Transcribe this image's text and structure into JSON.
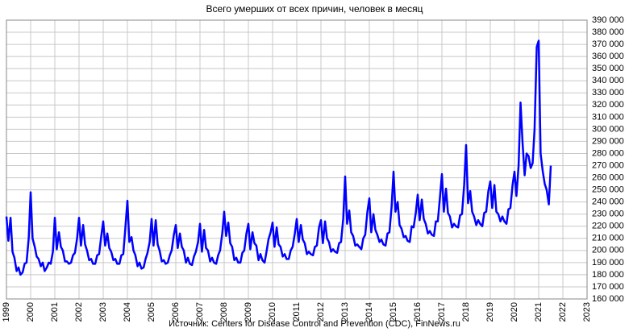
{
  "chart_data": {
    "type": "line",
    "title": "Всего умерших от всех причин, человек в месяц",
    "source": "Источник: Centers for Disease Control and Prevention (CDC), FinNews.ru",
    "color": "#0000ff",
    "grid": true,
    "xlim": [
      1999,
      2023
    ],
    "xticks": [
      1999,
      2000,
      2001,
      2002,
      2003,
      2004,
      2005,
      2006,
      2007,
      2008,
      2009,
      2010,
      2011,
      2012,
      2013,
      2014,
      2015,
      2016,
      2017,
      2018,
      2019,
      2020,
      2021,
      2022,
      2023
    ],
    "ylim": [
      160000,
      390000
    ],
    "yticks": [
      {
        "value": 160000,
        "label": "160 000"
      },
      {
        "value": 170000,
        "label": "170 000"
      },
      {
        "value": 180000,
        "label": "180 000"
      },
      {
        "value": 190000,
        "label": "190 000"
      },
      {
        "value": 200000,
        "label": "200 000"
      },
      {
        "value": 210000,
        "label": "210 000"
      },
      {
        "value": 220000,
        "label": "220 000"
      },
      {
        "value": 230000,
        "label": "230 000"
      },
      {
        "value": 240000,
        "label": "240 000"
      },
      {
        "value": 250000,
        "label": "250 000"
      },
      {
        "value": 260000,
        "label": "260 000"
      },
      {
        "value": 270000,
        "label": "270 000"
      },
      {
        "value": 280000,
        "label": "280 000"
      },
      {
        "value": 290000,
        "label": "290 000"
      },
      {
        "value": 300000,
        "label": "300 000"
      },
      {
        "value": 310000,
        "label": "310 000"
      },
      {
        "value": 320000,
        "label": "320 000"
      },
      {
        "value": 330000,
        "label": "330 000"
      },
      {
        "value": 340000,
        "label": "340 000"
      },
      {
        "value": 350000,
        "label": "350 000"
      },
      {
        "value": 360000,
        "label": "360 000"
      },
      {
        "value": 370000,
        "label": "370 000"
      },
      {
        "value": 380000,
        "label": "380 000"
      },
      {
        "value": 390000,
        "label": "390 000"
      }
    ],
    "x": [
      1999.0,
      1999.08,
      1999.17,
      1999.25,
      1999.33,
      1999.42,
      1999.5,
      1999.58,
      1999.67,
      1999.75,
      1999.83,
      1999.92,
      2000.0,
      2000.08,
      2000.17,
      2000.25,
      2000.33,
      2000.42,
      2000.5,
      2000.58,
      2000.67,
      2000.75,
      2000.83,
      2000.92,
      2001.0,
      2001.08,
      2001.17,
      2001.25,
      2001.33,
      2001.42,
      2001.5,
      2001.58,
      2001.67,
      2001.75,
      2001.83,
      2001.92,
      2002.0,
      2002.08,
      2002.17,
      2002.25,
      2002.33,
      2002.42,
      2002.5,
      2002.58,
      2002.67,
      2002.75,
      2002.83,
      2002.92,
      2003.0,
      2003.08,
      2003.17,
      2003.25,
      2003.33,
      2003.42,
      2003.5,
      2003.58,
      2003.67,
      2003.75,
      2003.83,
      2003.92,
      2004.0,
      2004.08,
      2004.17,
      2004.25,
      2004.33,
      2004.42,
      2004.5,
      2004.58,
      2004.67,
      2004.75,
      2004.83,
      2004.92,
      2005.0,
      2005.08,
      2005.17,
      2005.25,
      2005.33,
      2005.42,
      2005.5,
      2005.58,
      2005.67,
      2005.75,
      2005.83,
      2005.92,
      2006.0,
      2006.08,
      2006.17,
      2006.25,
      2006.33,
      2006.42,
      2006.5,
      2006.58,
      2006.67,
      2006.75,
      2006.83,
      2006.92,
      2007.0,
      2007.08,
      2007.17,
      2007.25,
      2007.33,
      2007.42,
      2007.5,
      2007.58,
      2007.67,
      2007.75,
      2007.83,
      2007.92,
      2008.0,
      2008.08,
      2008.17,
      2008.25,
      2008.33,
      2008.42,
      2008.5,
      2008.58,
      2008.67,
      2008.75,
      2008.83,
      2008.92,
      2009.0,
      2009.08,
      2009.17,
      2009.25,
      2009.33,
      2009.42,
      2009.5,
      2009.58,
      2009.67,
      2009.75,
      2009.83,
      2009.92,
      2010.0,
      2010.08,
      2010.17,
      2010.25,
      2010.33,
      2010.42,
      2010.5,
      2010.58,
      2010.67,
      2010.75,
      2010.83,
      2010.92,
      2011.0,
      2011.08,
      2011.17,
      2011.25,
      2011.33,
      2011.42,
      2011.5,
      2011.58,
      2011.67,
      2011.75,
      2011.83,
      2011.92,
      2012.0,
      2012.08,
      2012.17,
      2012.25,
      2012.33,
      2012.42,
      2012.5,
      2012.58,
      2012.67,
      2012.75,
      2012.83,
      2012.92,
      2013.0,
      2013.08,
      2013.17,
      2013.25,
      2013.33,
      2013.42,
      2013.5,
      2013.58,
      2013.67,
      2013.75,
      2013.83,
      2013.92,
      2014.0,
      2014.08,
      2014.17,
      2014.25,
      2014.33,
      2014.42,
      2014.5,
      2014.58,
      2014.67,
      2014.75,
      2014.83,
      2014.92,
      2015.0,
      2015.08,
      2015.17,
      2015.25,
      2015.33,
      2015.42,
      2015.5,
      2015.58,
      2015.67,
      2015.75,
      2015.83,
      2015.92,
      2016.0,
      2016.08,
      2016.17,
      2016.25,
      2016.33,
      2016.42,
      2016.5,
      2016.58,
      2016.67,
      2016.75,
      2016.83,
      2016.92,
      2017.0,
      2017.08,
      2017.17,
      2017.25,
      2017.33,
      2017.42,
      2017.5,
      2017.58,
      2017.67,
      2017.75,
      2017.83,
      2017.92,
      2018.0,
      2018.08,
      2018.17,
      2018.25,
      2018.33,
      2018.42,
      2018.5,
      2018.58,
      2018.67,
      2018.75,
      2018.83,
      2018.92,
      2019.0,
      2019.08,
      2019.17,
      2019.25,
      2019.33,
      2019.42,
      2019.5,
      2019.58,
      2019.67,
      2019.75,
      2019.83,
      2019.92,
      2020.0,
      2020.08,
      2020.17,
      2020.25,
      2020.33,
      2020.42,
      2020.5,
      2020.58,
      2020.67,
      2020.75,
      2020.83,
      2020.92,
      2021.0,
      2021.08,
      2021.17,
      2021.25,
      2021.33,
      2021.42,
      2021.5
    ],
    "values": [
      228000,
      208000,
      227000,
      199000,
      194000,
      183000,
      186000,
      180000,
      182000,
      189000,
      190000,
      210000,
      248000,
      210000,
      203000,
      195000,
      193000,
      187000,
      190000,
      183000,
      186000,
      190000,
      189000,
      199000,
      227000,
      201000,
      215000,
      203000,
      200000,
      191000,
      191000,
      189000,
      190000,
      196000,
      198000,
      210000,
      227000,
      204000,
      221000,
      205000,
      200000,
      192000,
      193000,
      189000,
      189000,
      196000,
      197000,
      212000,
      224000,
      204000,
      214000,
      202000,
      199000,
      192000,
      193000,
      189000,
      189000,
      196000,
      197000,
      220000,
      241000,
      207000,
      211000,
      200000,
      196000,
      187000,
      190000,
      185000,
      186000,
      193000,
      198000,
      207000,
      226000,
      204000,
      225000,
      205000,
      200000,
      191000,
      192000,
      189000,
      190000,
      196000,
      200000,
      213000,
      221000,
      202000,
      214000,
      203000,
      200000,
      190000,
      194000,
      189000,
      188000,
      195000,
      199000,
      207000,
      222000,
      199000,
      217000,
      202000,
      200000,
      191000,
      194000,
      190000,
      189000,
      196000,
      200000,
      214000,
      232000,
      212000,
      223000,
      206000,
      203000,
      192000,
      194000,
      190000,
      190000,
      198000,
      200000,
      214000,
      222000,
      201000,
      215000,
      206000,
      204000,
      192000,
      197000,
      192000,
      190000,
      199000,
      209000,
      215000,
      223000,
      203000,
      219000,
      205000,
      203000,
      195000,
      197000,
      193000,
      193000,
      200000,
      203000,
      214000,
      226000,
      207000,
      221000,
      209000,
      206000,
      197000,
      199000,
      197000,
      196000,
      203000,
      204000,
      219000,
      225000,
      206000,
      224000,
      210000,
      207000,
      199000,
      201000,
      199000,
      198000,
      206000,
      207000,
      226000,
      261000,
      222000,
      233000,
      215000,
      212000,
      204000,
      205000,
      203000,
      201000,
      210000,
      213000,
      232000,
      243000,
      215000,
      230000,
      217000,
      213000,
      207000,
      209000,
      205000,
      204000,
      214000,
      215000,
      236000,
      265000,
      232000,
      240000,
      221000,
      218000,
      211000,
      212000,
      208000,
      207000,
      220000,
      219000,
      231000,
      246000,
      225000,
      242000,
      226000,
      222000,
      214000,
      216000,
      213000,
      212000,
      224000,
      224000,
      244000,
      263000,
      232000,
      251000,
      231000,
      228000,
      219000,
      222000,
      220000,
      219000,
      229000,
      230000,
      254000,
      287000,
      239000,
      249000,
      232000,
      228000,
      221000,
      225000,
      222000,
      220000,
      231000,
      232000,
      249000,
      257000,
      235000,
      254000,
      232000,
      230000,
      224000,
      228000,
      224000,
      222000,
      234000,
      235000,
      254000,
      265000,
      245000,
      270000,
      322000,
      290000,
      262000,
      280000,
      278000,
      268000,
      272000,
      300000,
      368000,
      373000,
      280000,
      265000,
      255000,
      250000,
      238000,
      270000
    ]
  }
}
